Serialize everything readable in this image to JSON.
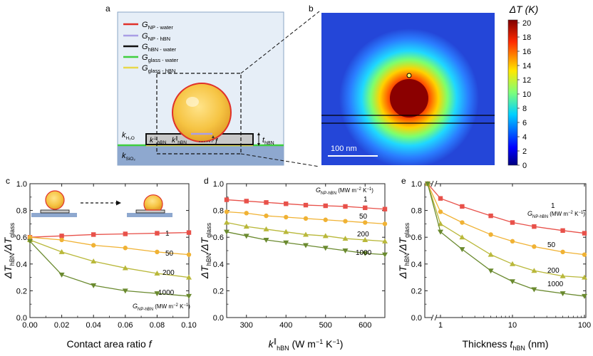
{
  "panel_a": {
    "label": "a",
    "legend": [
      {
        "g": "G",
        "sub": "NP - water",
        "color": "#e0312a"
      },
      {
        "g": "G",
        "sub": "NP - hBN",
        "color": "#a99ee6"
      },
      {
        "g": "G",
        "sub": "hBN - water",
        "color": "#111111"
      },
      {
        "g": "G",
        "sub": "glass - water",
        "color": "#3fcf3f"
      },
      {
        "g": "G",
        "sub": "glass - hBN",
        "color": "#e8d84a"
      }
    ],
    "k_water": {
      "base": "k",
      "sub": "H₂O"
    },
    "k_perp": {
      "base": "k",
      "sup": "⊥",
      "sub": "hBN"
    },
    "k_par": {
      "base": "k",
      "sup": "∥",
      "sub": "hBN"
    },
    "f_label": "f",
    "t_label": {
      "base": "t",
      "sub": "hBN"
    },
    "k_glass": {
      "base": "k",
      "sub": "SiO₂"
    }
  },
  "panel_b": {
    "label": "b",
    "colorbar_title": "ΔT (K)",
    "colorbar_ticks": [
      "0",
      "2",
      "4",
      "6",
      "8",
      "10",
      "12",
      "14",
      "16",
      "18",
      "20"
    ],
    "scale_bar": "100 nm"
  },
  "chart_data": [
    {
      "panel": "c",
      "type": "line",
      "xlabel": "Contact area ratio f",
      "ylabel": "ΔT_hBN/ΔT_glass",
      "xlim": [
        0,
        0.1
      ],
      "ylim": [
        0,
        1.0
      ],
      "xticks": [
        "0.00",
        "0.02",
        "0.04",
        "0.06",
        "0.08",
        "0.10"
      ],
      "yticks": [
        "0.0",
        "0.2",
        "0.4",
        "0.6",
        "0.8",
        "1.0"
      ],
      "legend_title": "G_NP-hBN (MW m⁻² K⁻¹)",
      "series": [
        {
          "name": "1",
          "color": "#e8514a",
          "marker": "square",
          "x": [
            0,
            0.02,
            0.04,
            0.06,
            0.08,
            0.1
          ],
          "y": [
            0.6,
            0.61,
            0.62,
            0.625,
            0.63,
            0.635
          ]
        },
        {
          "name": "50",
          "color": "#f0b234",
          "marker": "circle",
          "x": [
            0,
            0.02,
            0.04,
            0.06,
            0.08,
            0.1
          ],
          "y": [
            0.6,
            0.58,
            0.54,
            0.52,
            0.49,
            0.47
          ]
        },
        {
          "name": "200",
          "color": "#b9b83a",
          "marker": "triangle-up",
          "x": [
            0,
            0.02,
            0.04,
            0.06,
            0.08,
            0.1
          ],
          "y": [
            0.58,
            0.49,
            0.42,
            0.37,
            0.33,
            0.3
          ]
        },
        {
          "name": "1000",
          "color": "#6a8a2f",
          "marker": "triangle-down",
          "x": [
            0,
            0.02,
            0.04,
            0.06,
            0.08,
            0.1
          ],
          "y": [
            0.57,
            0.32,
            0.24,
            0.2,
            0.18,
            0.16
          ]
        }
      ]
    },
    {
      "panel": "d",
      "type": "line",
      "xlabel": "k∥_hBN (W m⁻¹ K⁻¹)",
      "ylabel": "ΔT_hBN/ΔT_glass",
      "xlim": [
        250,
        650
      ],
      "ylim": [
        0,
        1.0
      ],
      "xticks": [
        "300",
        "400",
        "500",
        "600"
      ],
      "yticks": [
        "0.0",
        "0.2",
        "0.4",
        "0.6",
        "0.8",
        "1.0"
      ],
      "legend_title": "G_NP-hBN (MW m⁻² K⁻¹)",
      "series": [
        {
          "name": "1",
          "color": "#e8514a",
          "marker": "square",
          "x": [
            250,
            300,
            350,
            400,
            450,
            500,
            550,
            600,
            650
          ],
          "y": [
            0.88,
            0.87,
            0.86,
            0.85,
            0.84,
            0.835,
            0.83,
            0.82,
            0.81
          ]
        },
        {
          "name": "50",
          "color": "#f0b234",
          "marker": "circle",
          "x": [
            250,
            300,
            350,
            400,
            450,
            500,
            550,
            600,
            650
          ],
          "y": [
            0.79,
            0.78,
            0.76,
            0.75,
            0.74,
            0.73,
            0.72,
            0.71,
            0.7
          ]
        },
        {
          "name": "200",
          "color": "#b9b83a",
          "marker": "triangle-up",
          "x": [
            250,
            300,
            350,
            400,
            450,
            500,
            550,
            600,
            650
          ],
          "y": [
            0.71,
            0.68,
            0.66,
            0.64,
            0.62,
            0.61,
            0.59,
            0.58,
            0.57
          ]
        },
        {
          "name": "1000",
          "color": "#6a8a2f",
          "marker": "triangle-down",
          "x": [
            250,
            300,
            350,
            400,
            450,
            500,
            550,
            600,
            650
          ],
          "y": [
            0.64,
            0.61,
            0.58,
            0.56,
            0.54,
            0.52,
            0.5,
            0.48,
            0.47
          ]
        }
      ]
    },
    {
      "panel": "e",
      "type": "line",
      "xscale": "log",
      "xlabel": "Thickness t_hBN (nm)",
      "ylabel": "ΔT_hBN/ΔT_glass",
      "xlim": [
        1,
        100
      ],
      "ylim": [
        0,
        1.0
      ],
      "xticks": [
        "1",
        "10",
        "100"
      ],
      "yticks": [
        "0.0",
        "0.2",
        "0.4",
        "0.6",
        "0.8",
        "1.0"
      ],
      "break_value": 0,
      "legend_title": "G_NP-hBN (MW m⁻² K⁻¹)",
      "series": [
        {
          "name": "1",
          "color": "#e8514a",
          "marker": "square",
          "x": [
            0,
            1,
            2,
            5,
            10,
            20,
            50,
            100
          ],
          "y": [
            1.0,
            0.89,
            0.83,
            0.76,
            0.71,
            0.68,
            0.65,
            0.63
          ]
        },
        {
          "name": "50",
          "color": "#f0b234",
          "marker": "circle",
          "x": [
            0,
            1,
            2,
            5,
            10,
            20,
            50,
            100
          ],
          "y": [
            1.0,
            0.79,
            0.71,
            0.62,
            0.57,
            0.53,
            0.49,
            0.47
          ]
        },
        {
          "name": "200",
          "color": "#b9b83a",
          "marker": "triangle-up",
          "x": [
            0,
            1,
            2,
            5,
            10,
            20,
            50,
            100
          ],
          "y": [
            1.0,
            0.7,
            0.6,
            0.47,
            0.4,
            0.35,
            0.31,
            0.3
          ]
        },
        {
          "name": "1000",
          "color": "#6a8a2f",
          "marker": "triangle-down",
          "x": [
            0,
            1,
            2,
            5,
            10,
            20,
            50,
            100
          ],
          "y": [
            1.0,
            0.64,
            0.51,
            0.35,
            0.27,
            0.21,
            0.18,
            0.16
          ]
        }
      ]
    }
  ]
}
